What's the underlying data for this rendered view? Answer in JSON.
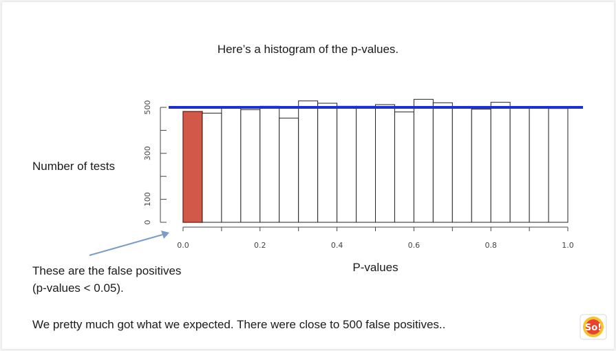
{
  "slide": {
    "title": "Here’s a histogram of the p-values.",
    "side_label": "Number of tests",
    "note_line1": "These are the false positives",
    "note_line2": "(p-values < 0.05).",
    "conclusion": "We pretty much got what we expected. There were close to 500 false positives..",
    "logo_text": "So!"
  },
  "chart_data": {
    "type": "bar",
    "title": "",
    "xlabel": "P-values",
    "ylabel": "",
    "xlim": [
      0,
      1.0
    ],
    "ylim": [
      0,
      500
    ],
    "x_ticks": [
      "0.0",
      "0.2",
      "0.4",
      "0.6",
      "0.8",
      "1.0"
    ],
    "y_ticks": [
      "0",
      "100",
      "300",
      "500"
    ],
    "bin_edges": [
      0,
      0.05,
      0.1,
      0.15,
      0.2,
      0.25,
      0.3,
      0.35,
      0.4,
      0.45,
      0.5,
      0.55,
      0.6,
      0.65,
      0.7,
      0.75,
      0.8,
      0.85,
      0.9,
      0.95,
      1.0
    ],
    "values": [
      482,
      475,
      504,
      490,
      505,
      453,
      528,
      518,
      505,
      505,
      512,
      480,
      535,
      520,
      500,
      492,
      522,
      500,
      500,
      495
    ],
    "highlight_bin": 0,
    "highlight_color": "#d0594a",
    "bar_color": "#ffffff",
    "reference_line": 500,
    "reference_line_color": "#1f2fd6",
    "arrow_color": "#7a9cc9"
  }
}
